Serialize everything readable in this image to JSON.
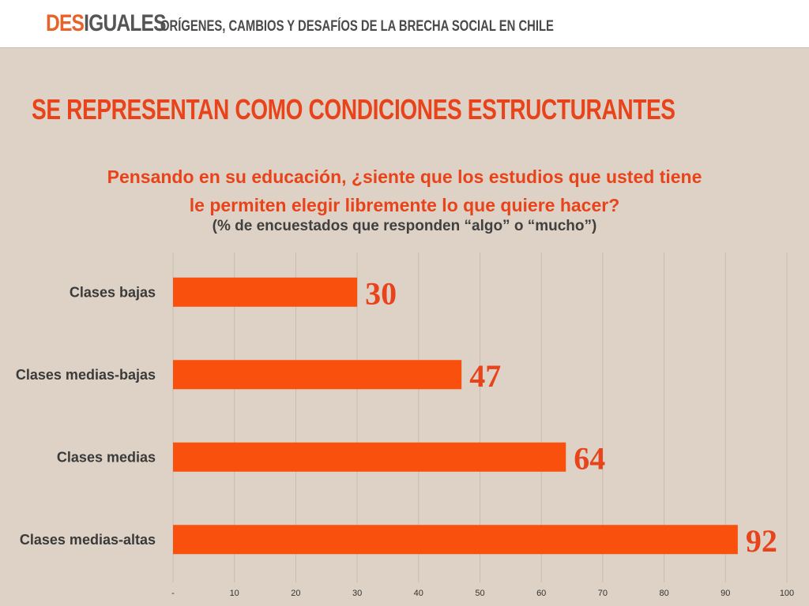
{
  "header": {
    "brand_part1": "DES",
    "brand_part2": "IGUALES",
    "tagline": "ORÍGENES, CAMBIOS Y DESAFÍOS DE LA BRECHA SOCIAL EN CHILE"
  },
  "slide_title": "SE REPRESENTAN COMO CONDICIONES ESTRUCTURANTES",
  "chart_data": {
    "type": "bar",
    "orientation": "horizontal",
    "title_line1": "Pensando en su educación, ¿siente que los estudios que usted tiene",
    "title_line2": "le permiten elegir libremente lo que quiere hacer?",
    "subtitle": "(% de encuestados que responden “algo” o “mucho”)",
    "categories": [
      "Clases bajas",
      "Clases medias-bajas",
      "Clases medias",
      "Clases medias-altas"
    ],
    "values": [
      30,
      47,
      64,
      92
    ],
    "xlim": [
      0,
      100
    ],
    "x_ticks": [
      "-",
      "10",
      "20",
      "30",
      "40",
      "50",
      "60",
      "70",
      "80",
      "90",
      "100"
    ],
    "grid": true,
    "bar_color": "#f9500d",
    "value_label_color": "#e8431a"
  }
}
